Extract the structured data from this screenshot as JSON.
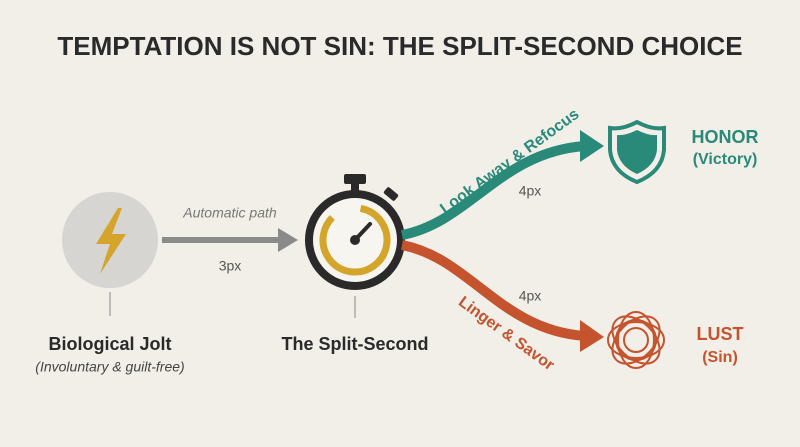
{
  "title": "TEMPTATION IS NOT SIN: THE SPLIT-SECOND CHOICE",
  "nodes": [
    {
      "label": "Biological Jolt",
      "sublabel": "(Involuntary & guilt-free)"
    },
    {
      "label": "The Split-Second"
    }
  ],
  "edges": [
    {
      "label": "Automatic path",
      "note": "3px"
    },
    {
      "label": "Look Away & Refocus",
      "note": "4px"
    },
    {
      "label": "Linger & Savor",
      "note": "4px"
    }
  ],
  "outcomes": [
    {
      "label": "HONOR",
      "sublabel": "(Victory)"
    },
    {
      "label": "LUST",
      "sublabel": "(Sin)"
    }
  ]
}
